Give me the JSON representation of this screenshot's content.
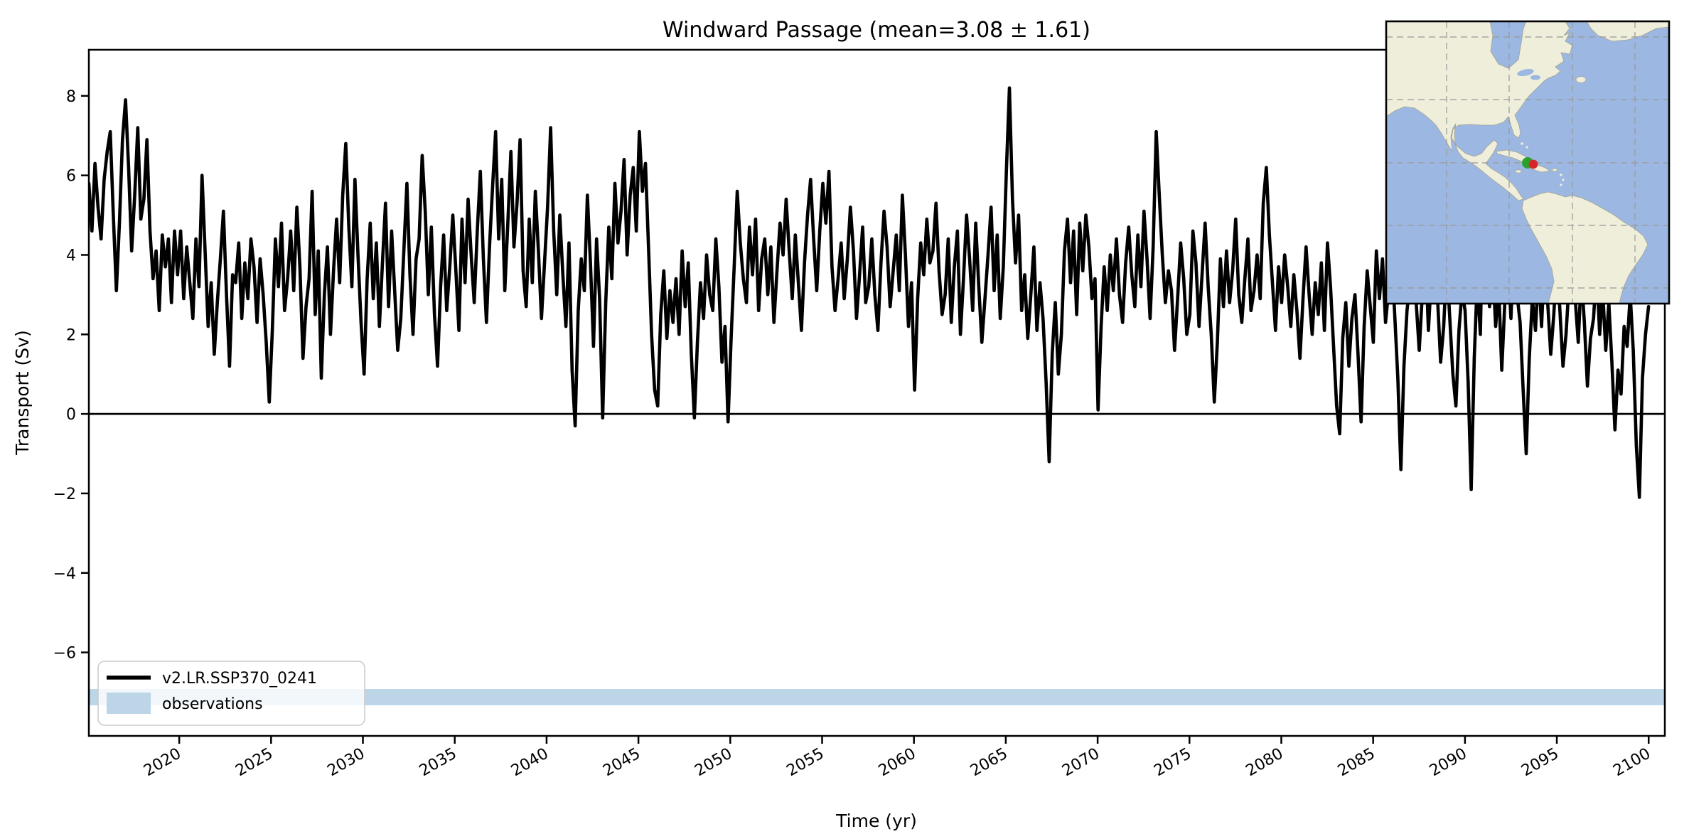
{
  "figure": {
    "title": "Windward Passage (mean=3.08 ± 1.61)",
    "xlabel": "Time (yr)",
    "ylabel": "Transport (Sv)"
  },
  "legend": {
    "model_label": "v2.LR.SSP370_0241",
    "obs_label": "observations"
  },
  "chart_data": {
    "type": "line",
    "title": "Windward Passage (mean=3.08 ± 1.61)",
    "xlabel": "Time (yr)",
    "ylabel": "Transport (Sv)",
    "mean": 3.08,
    "std": 1.61,
    "xlim": [
      2015.08,
      2100.88
    ],
    "ylim": [
      -8.1,
      9.16
    ],
    "x_ticks": [
      2020,
      2025,
      2030,
      2035,
      2040,
      2045,
      2050,
      2055,
      2060,
      2065,
      2070,
      2075,
      2080,
      2085,
      2090,
      2095,
      2100
    ],
    "y_ticks": [
      -6,
      -4,
      -2,
      0,
      2,
      4,
      6,
      8
    ],
    "y_tick_labels": [
      "−6",
      "−4",
      "−2",
      "0",
      "2",
      "4",
      "6",
      "8"
    ],
    "zero_line": true,
    "grid": false,
    "legend_position": "lower left",
    "observations_band": {
      "label": "observations",
      "y_min": -7.33,
      "y_max": -6.92,
      "color": "#bcd6e8"
    },
    "series": [
      {
        "name": "v2.LR.SSP370_0241",
        "color": "#000000",
        "x_start": 2015.08,
        "x_step": 0.1665,
        "values": [
          5.8,
          4.6,
          6.3,
          5.2,
          4.4,
          5.9,
          6.6,
          7.1,
          5.0,
          3.1,
          4.8,
          6.9,
          7.9,
          6.2,
          4.1,
          5.5,
          7.2,
          4.9,
          5.4,
          6.9,
          4.6,
          3.4,
          4.1,
          2.6,
          4.5,
          3.7,
          4.4,
          2.8,
          4.6,
          3.5,
          4.6,
          2.9,
          4.2,
          3.3,
          2.4,
          4.4,
          3.2,
          6.0,
          4.1,
          2.2,
          3.3,
          1.5,
          2.8,
          3.9,
          5.1,
          3.0,
          1.2,
          3.5,
          3.3,
          4.3,
          2.4,
          3.8,
          2.9,
          4.4,
          3.7,
          2.3,
          3.9,
          3.0,
          1.8,
          0.3,
          2.1,
          4.4,
          3.2,
          4.8,
          2.6,
          3.4,
          4.6,
          3.1,
          5.2,
          3.7,
          1.4,
          2.7,
          3.4,
          5.6,
          2.5,
          4.1,
          0.9,
          3.0,
          4.2,
          2.0,
          3.6,
          4.9,
          3.3,
          5.5,
          6.8,
          4.7,
          3.2,
          5.9,
          4.0,
          2.3,
          1.0,
          3.4,
          4.8,
          2.9,
          4.3,
          2.2,
          3.8,
          5.3,
          2.7,
          4.6,
          3.1,
          1.6,
          2.4,
          4.1,
          5.8,
          3.5,
          2.0,
          3.9,
          4.4,
          6.5,
          5.1,
          3.0,
          4.7,
          2.5,
          1.2,
          3.2,
          4.5,
          2.6,
          3.7,
          5.0,
          3.6,
          2.1,
          4.9,
          3.3,
          5.4,
          4.0,
          2.8,
          4.6,
          6.1,
          3.9,
          2.3,
          4.2,
          5.7,
          7.1,
          4.4,
          5.9,
          3.1,
          4.8,
          6.6,
          4.2,
          5.3,
          6.9,
          3.6,
          2.7,
          4.9,
          3.3,
          5.6,
          4.1,
          2.4,
          3.8,
          5.2,
          7.2,
          4.6,
          3.0,
          5.0,
          3.5,
          2.2,
          4.3,
          1.1,
          -0.3,
          2.6,
          3.9,
          3.1,
          5.5,
          3.8,
          1.7,
          4.4,
          2.9,
          -0.1,
          2.8,
          4.7,
          3.4,
          5.8,
          4.3,
          5.1,
          6.4,
          4.0,
          5.5,
          6.2,
          4.6,
          7.1,
          5.6,
          6.3,
          4.2,
          2.0,
          0.6,
          0.2,
          2.5,
          3.6,
          1.9,
          3.1,
          2.3,
          3.4,
          2.0,
          4.1,
          2.7,
          3.8,
          1.5,
          -0.1,
          1.8,
          3.3,
          2.4,
          4.0,
          3.0,
          2.6,
          4.4,
          3.2,
          1.3,
          2.2,
          -0.2,
          1.9,
          3.7,
          5.6,
          4.3,
          3.4,
          2.8,
          4.7,
          3.5,
          4.9,
          2.6,
          3.9,
          4.4,
          3.0,
          4.2,
          2.3,
          3.6,
          4.8,
          4.0,
          5.4,
          4.1,
          2.9,
          4.5,
          3.3,
          2.1,
          3.8,
          5.0,
          5.9,
          4.4,
          3.1,
          4.6,
          5.8,
          4.8,
          6.1,
          3.7,
          2.6,
          3.4,
          4.3,
          2.9,
          3.9,
          5.2,
          4.1,
          2.4,
          3.5,
          4.7,
          2.8,
          3.2,
          4.4,
          3.0,
          2.1,
          3.8,
          5.1,
          4.2,
          2.7,
          3.6,
          4.5,
          3.1,
          5.5,
          4.0,
          2.2,
          3.3,
          0.6,
          2.9,
          4.3,
          3.5,
          4.9,
          3.8,
          4.1,
          5.3,
          3.6,
          2.5,
          3.0,
          4.4,
          2.3,
          3.7,
          4.6,
          2.0,
          3.4,
          5.0,
          3.9,
          2.6,
          4.8,
          3.2,
          1.8,
          2.9,
          4.0,
          5.2,
          3.1,
          4.5,
          2.4,
          3.7,
          6.1,
          8.2,
          5.4,
          3.8,
          5.0,
          2.6,
          3.5,
          1.9,
          3.0,
          4.2,
          2.1,
          3.3,
          2.4,
          0.8,
          -1.2,
          1.5,
          2.8,
          1.0,
          2.0,
          4.1,
          4.9,
          3.3,
          4.6,
          2.5,
          4.8,
          3.6,
          5.0,
          4.2,
          2.9,
          3.4,
          0.1,
          2.2,
          3.7,
          2.6,
          4.0,
          3.1,
          4.4,
          3.0,
          2.3,
          3.8,
          4.7,
          3.5,
          2.7,
          4.5,
          3.2,
          5.1,
          3.9,
          2.4,
          4.2,
          7.1,
          5.5,
          4.0,
          2.8,
          3.6,
          3.1,
          1.6,
          2.9,
          4.3,
          3.4,
          2.0,
          2.5,
          4.6,
          3.8,
          2.2,
          3.5,
          4.8,
          3.2,
          2.0,
          0.3,
          1.8,
          3.9,
          2.7,
          4.1,
          2.8,
          3.6,
          4.9,
          3.0,
          2.3,
          3.4,
          4.4,
          2.6,
          3.1,
          4.0,
          2.9,
          5.3,
          6.2,
          4.5,
          3.3,
          2.1,
          3.7,
          2.8,
          4.0,
          3.2,
          2.2,
          3.5,
          2.6,
          1.4,
          2.9,
          4.2,
          3.0,
          2.0,
          3.3,
          2.5,
          3.8,
          2.1,
          4.3,
          3.2,
          1.7,
          0.2,
          -0.5,
          1.9,
          2.8,
          1.2,
          2.4,
          3.0,
          1.5,
          -0.2,
          2.2,
          3.6,
          2.7,
          1.8,
          4.1,
          2.9,
          3.9,
          2.3,
          3.1,
          4.0,
          2.5,
          0.9,
          -1.4,
          1.2,
          2.6,
          3.3,
          4.6,
          2.8,
          1.6,
          3.0,
          4.2,
          2.1,
          3.5,
          4.4,
          2.9,
          1.3,
          2.2,
          3.8,
          2.4,
          1.0,
          0.2,
          2.1,
          3.1,
          2.6,
          0.8,
          -1.9,
          1.4,
          3.4,
          2.0,
          5.9,
          4.1,
          2.7,
          3.8,
          2.2,
          3.2,
          1.1,
          2.8,
          3.9,
          2.4,
          4.2,
          3.0,
          2.3,
          0.6,
          -1.0,
          1.4,
          2.9,
          2.1,
          3.6,
          2.2,
          4.0,
          2.8,
          1.5,
          2.5,
          3.9,
          2.6,
          1.2,
          2.0,
          3.3,
          4.1,
          2.9,
          1.8,
          3.5,
          2.3,
          0.7,
          1.9,
          2.4,
          3.7,
          2.0,
          3.1,
          1.6,
          2.8,
          1.3,
          -0.4,
          1.1,
          0.5,
          2.2,
          1.7,
          3.0,
          1.6,
          -0.8,
          -2.1,
          0.9,
          2.0,
          2.7
        ]
      }
    ]
  },
  "inset_map": {
    "region": "Americas with Windward Passage markers",
    "ocean_color": "#9cb8e2",
    "land_color": "#efeedb",
    "model_marker_color": "#2ca02c",
    "obs_marker_color": "#d62728"
  }
}
